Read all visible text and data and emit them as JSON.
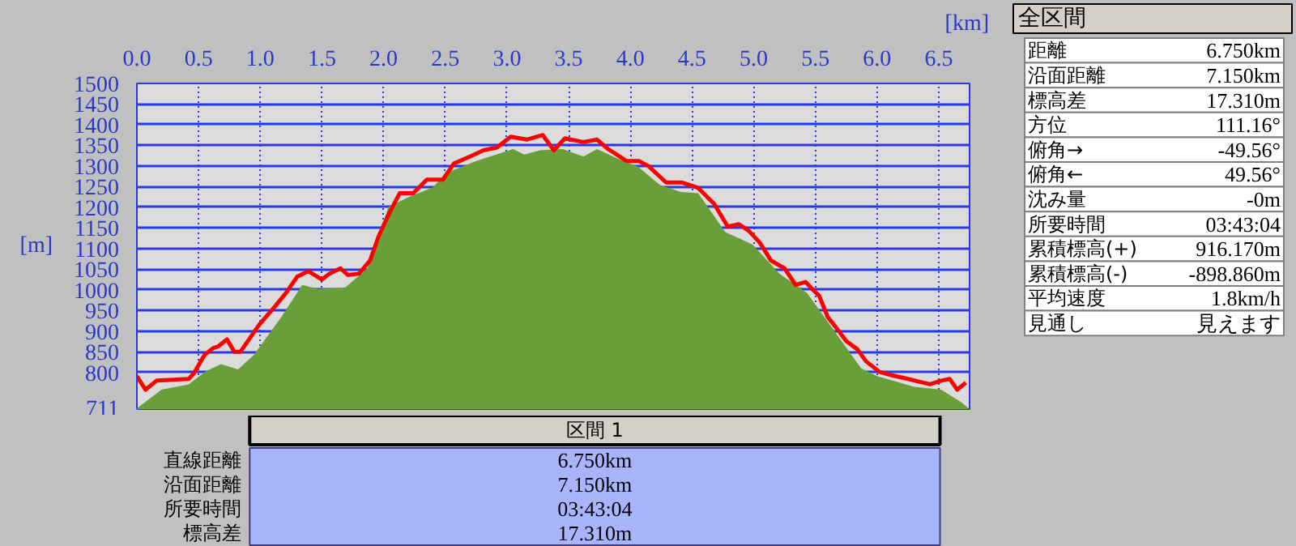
{
  "chart_data": [
    {
      "type": "area",
      "xlabel": "[km]",
      "ylabel": "[m]",
      "grid": true,
      "xlim": [
        0,
        6.75
      ],
      "ylim": [
        711,
        1500
      ],
      "xticks": [
        {
          "value": 0,
          "label": "0.0"
        },
        {
          "value": 0.5,
          "label": "0.5"
        },
        {
          "value": 1,
          "label": "1.0"
        },
        {
          "value": 1.5,
          "label": "1.5"
        },
        {
          "value": 2,
          "label": "2.0"
        },
        {
          "value": 2.5,
          "label": "2.5"
        },
        {
          "value": 3,
          "label": "3.0"
        },
        {
          "value": 3.5,
          "label": "3.5"
        },
        {
          "value": 4,
          "label": "4.0"
        },
        {
          "value": 4.5,
          "label": "4.5"
        },
        {
          "value": 5,
          "label": "5.0"
        },
        {
          "value": 5.5,
          "label": "5.5"
        },
        {
          "value": 6,
          "label": "6.0"
        },
        {
          "value": 6.5,
          "label": "6.5"
        }
      ],
      "yticks": [
        711,
        800,
        850,
        900,
        950,
        1000,
        1050,
        1100,
        1150,
        1200,
        1250,
        1300,
        1350,
        1400,
        1450,
        1500
      ],
      "series": [
        {
          "type": "area",
          "color": "#6a9e3a",
          "x": [
            0,
            0.2,
            0.42,
            0.55,
            0.68,
            0.82,
            0.95,
            1.17,
            1.34,
            1.47,
            1.69,
            1.87,
            2.04,
            2.22,
            2.39,
            2.53,
            2.75,
            2.96,
            3.05,
            3.14,
            3.27,
            3.45,
            3.62,
            3.73,
            3.89,
            4.06,
            4.24,
            4.41,
            4.55,
            4.77,
            4.99,
            5.21,
            5.43,
            5.65,
            5.87,
            6.0,
            6.3,
            6.52,
            6.69,
            6.74
          ],
          "values": [
            713,
            758,
            771,
            801,
            820,
            807,
            843,
            934,
            1012,
            1002,
            1006,
            1052,
            1201,
            1227,
            1247,
            1286,
            1312,
            1332,
            1341,
            1328,
            1338,
            1341,
            1323,
            1341,
            1319,
            1299,
            1254,
            1237,
            1234,
            1140,
            1110,
            1039,
            993,
            902,
            810,
            791,
            765,
            758,
            726,
            713
          ]
        },
        {
          "type": "line",
          "color": "#ff0000",
          "x": [
            0,
            0.07,
            0.16,
            0.42,
            0.46,
            0.55,
            0.62,
            0.66,
            0.73,
            0.79,
            0.84,
            0.99,
            1.12,
            1.21,
            1.3,
            1.39,
            1.5,
            1.56,
            1.65,
            1.71,
            1.8,
            1.89,
            1.96,
            2.04,
            2.13,
            2.24,
            2.35,
            2.48,
            2.57,
            2.7,
            2.81,
            2.92,
            3.03,
            3.16,
            3.29,
            3.38,
            3.47,
            3.62,
            3.73,
            3.82,
            3.97,
            4.07,
            4.15,
            4.29,
            4.42,
            4.55,
            4.68,
            4.79,
            4.88,
            4.96,
            5.05,
            5.14,
            5.25,
            5.34,
            5.42,
            5.49,
            5.53,
            5.6,
            5.67,
            5.75,
            5.84,
            5.91,
            6.02,
            6.12,
            6.25,
            6.43,
            6.52,
            6.59,
            6.65,
            6.72
          ],
          "values": [
            791,
            758,
            780,
            784,
            797,
            843,
            859,
            863,
            880,
            850,
            850,
            915,
            960,
            993,
            1032,
            1045,
            1025,
            1039,
            1052,
            1036,
            1039,
            1071,
            1130,
            1182,
            1234,
            1234,
            1267,
            1267,
            1306,
            1323,
            1338,
            1345,
            1371,
            1364,
            1375,
            1338,
            1367,
            1358,
            1364,
            1341,
            1312,
            1312,
            1299,
            1260,
            1260,
            1247,
            1208,
            1153,
            1159,
            1143,
            1114,
            1071,
            1052,
            1012,
            1019,
            997,
            986,
            934,
            908,
            876,
            856,
            827,
            801,
            793,
            784,
            771,
            780,
            784,
            758,
            775
          ]
        }
      ]
    },
    {
      "type": "other",
      "title": "全区間",
      "annotations": [
        "距離",
        "6.750km",
        "沿面距離",
        "7.150km",
        "標高差",
        "17.310m",
        "方位",
        "111.16°",
        "俯角→",
        "-49.56°",
        "俯角←",
        "49.56°",
        "沈み量",
        "-0m",
        "所要時間",
        "03:43:04",
        "累積標高(+)",
        "916.170m",
        "累積標高(-)",
        "-898.860m",
        "平均速度",
        "1.8km/h",
        "見通し",
        "見えます"
      ]
    },
    {
      "type": "other",
      "title": "区間 1",
      "annotations": [
        "直線距離",
        "6.750km",
        "沿面距離",
        "7.150km",
        "所要時間",
        "03:43:04",
        "標高差",
        "17.310m"
      ]
    }
  ]
}
